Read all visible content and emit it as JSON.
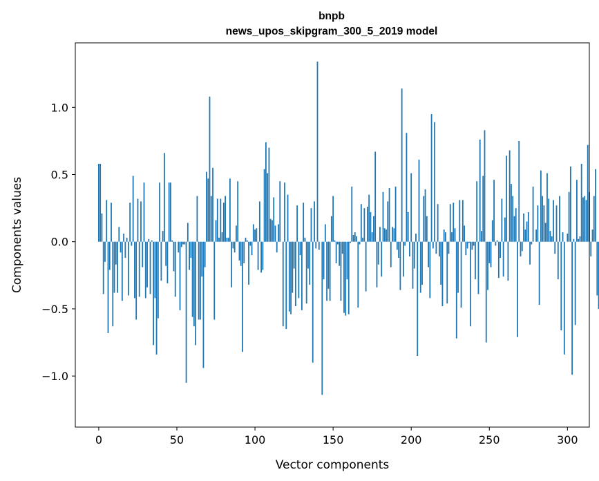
{
  "chart_data": {
    "type": "bar",
    "title": "bnpb",
    "subtitle": "news_upos_skipgram_300_5_2019 model",
    "xlabel": "Vector components",
    "ylabel": "Components values",
    "xlim": [
      -15,
      314
    ],
    "ylim": [
      -1.38,
      1.48
    ],
    "xticks": [
      0,
      50,
      100,
      150,
      200,
      250,
      300
    ],
    "xtick_labels": [
      "0",
      "50",
      "100",
      "150",
      "200",
      "250",
      "300"
    ],
    "yticks": [
      -1.0,
      -0.5,
      0.0,
      0.5,
      1.0
    ],
    "ytick_labels": [
      "−1.0",
      "−0.5",
      "0.0",
      "0.5",
      "1.0"
    ],
    "grid": false,
    "bar_color": "#1f77b4",
    "values": [
      0.58,
      0.58,
      0.21,
      -0.39,
      -0.15,
      0.31,
      -0.68,
      -0.21,
      0.29,
      -0.63,
      -0.38,
      -0.17,
      -0.38,
      0.11,
      -0.08,
      -0.44,
      0.06,
      -0.12,
      0.03,
      -0.4,
      0.29,
      -0.03,
      0.49,
      -0.42,
      -0.58,
      0.32,
      -0.41,
      0.3,
      -0.19,
      0.44,
      -0.42,
      -0.34,
      0.02,
      -0.39,
      0.01,
      -0.77,
      -0.42,
      -0.84,
      -0.57,
      0.44,
      -0.29,
      0.08,
      0.66,
      -0.18,
      -0.31,
      0.44,
      0.44,
      0.01,
      -0.22,
      -0.41,
      0.0,
      -0.08,
      -0.51,
      -0.04,
      -0.02,
      -0.02,
      -1.05,
      0.14,
      -0.21,
      -0.12,
      -0.56,
      -0.63,
      -0.77,
      0.34,
      -0.58,
      -0.58,
      -0.26,
      -0.94,
      -0.19,
      0.52,
      0.47,
      1.08,
      0.34,
      0.55,
      -0.58,
      0.16,
      0.32,
      0.03,
      0.32,
      0.07,
      0.29,
      0.34,
      0.03,
      0.03,
      0.47,
      -0.34,
      -0.05,
      -0.08,
      0.12,
      0.45,
      -0.14,
      -0.18,
      -0.82,
      -0.16,
      0.03,
      0.01,
      -0.32,
      -0.03,
      -0.1,
      0.13,
      0.09,
      0.1,
      -0.21,
      0.3,
      -0.23,
      -0.21,
      0.54,
      0.74,
      0.51,
      0.7,
      0.17,
      0.16,
      0.33,
      0.12,
      -0.08,
      0.13,
      0.45,
      0.0,
      -0.63,
      0.44,
      -0.65,
      0.35,
      -0.52,
      -0.54,
      -0.38,
      -0.2,
      -0.48,
      0.27,
      -0.42,
      -0.1,
      -0.51,
      0.29,
      0.03,
      -0.46,
      -0.2,
      -0.32,
      0.25,
      -0.9,
      0.3,
      -0.05,
      1.34,
      -0.06,
      0.0,
      -1.14,
      -0.28,
      0.13,
      -0.44,
      -0.35,
      -0.44,
      0.19,
      0.34,
      0.01,
      -0.16,
      -0.02,
      -0.18,
      -0.44,
      -0.09,
      -0.53,
      -0.55,
      -0.28,
      -0.54,
      -0.01,
      0.41,
      0.05,
      0.07,
      0.04,
      -0.49,
      -0.02,
      0.28,
      0.03,
      0.25,
      -0.37,
      0.26,
      0.35,
      0.22,
      0.07,
      0.19,
      0.67,
      -0.34,
      -0.17,
      0.11,
      -0.26,
      0.37,
      0.1,
      0.09,
      0.3,
      0.4,
      -0.19,
      0.11,
      0.1,
      0.41,
      -0.06,
      -0.12,
      -0.36,
      1.14,
      -0.26,
      -0.03,
      0.81,
      0.22,
      -0.11,
      0.51,
      -0.35,
      -0.2,
      0.06,
      -0.85,
      0.61,
      -0.38,
      -0.32,
      0.34,
      0.39,
      0.19,
      -0.19,
      -0.42,
      0.95,
      -0.05,
      0.89,
      -0.09,
      0.28,
      -0.11,
      -0.32,
      -0.48,
      0.09,
      0.07,
      -0.46,
      -0.09,
      0.28,
      0.07,
      0.29,
      0.1,
      -0.72,
      -0.38,
      0.31,
      -0.49,
      0.31,
      0.12,
      -0.1,
      -0.05,
      -0.01,
      -0.63,
      -0.06,
      -0.03,
      -0.28,
      0.45,
      -0.39,
      0.76,
      0.08,
      0.49,
      0.83,
      -0.75,
      -0.36,
      -0.16,
      -0.19,
      0.16,
      0.46,
      -0.03,
      0.01,
      -0.27,
      -0.12,
      0.32,
      -0.26,
      0.18,
      0.64,
      -0.29,
      0.68,
      0.43,
      0.34,
      0.19,
      0.25,
      -0.71,
      0.75,
      -0.11,
      -0.07,
      0.21,
      0.09,
      0.15,
      0.22,
      -0.17,
      -0.02,
      0.41,
      0.0,
      0.09,
      0.27,
      -0.47,
      0.53,
      0.34,
      0.27,
      0.14,
      0.51,
      0.32,
      0.08,
      0.04,
      0.31,
      -0.09,
      0.27,
      -0.28,
      0.34,
      -0.66,
      0.07,
      -0.84,
      0.0,
      0.06,
      0.37,
      0.56,
      -0.99,
      0.02,
      -0.62,
      0.46,
      0.02,
      0.04,
      0.58,
      0.33,
      0.34,
      0.31,
      0.72,
      0.37,
      -0.11,
      0.09,
      0.34,
      0.54,
      -0.4,
      -0.5
    ]
  }
}
